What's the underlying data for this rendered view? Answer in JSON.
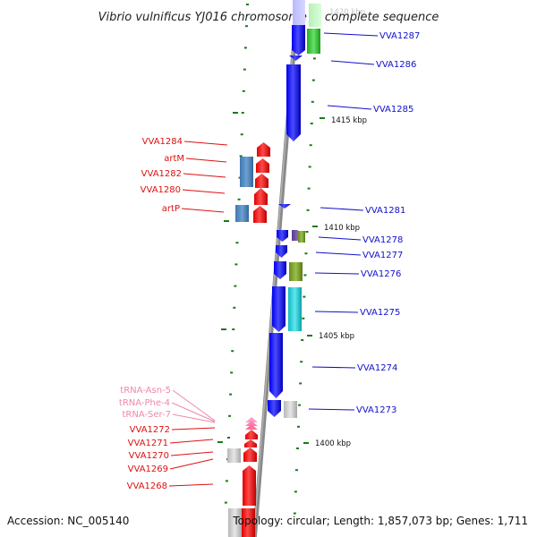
{
  "title": "Vibrio vulnificus YJ016 chromosome II, complete sequence",
  "accession": "Accession: NC_005140",
  "topology": "Topology: circular; Length: 1,857,073 bp; Genes: 1,711",
  "scale_labels": [
    "1420 kbp",
    "1415 kbp",
    "1410 kbp",
    "1405 kbp",
    "1400 kbp"
  ],
  "right_labels": [
    "VVA1287",
    "VVA1286",
    "VVA1285",
    "VVA1281",
    "VVA1278",
    "VVA1277",
    "VVA1276",
    "VVA1275",
    "VVA1274",
    "VVA1273"
  ],
  "left_labels": [
    "VVA1284",
    "artM",
    "VVA1282",
    "VVA1280",
    "artP",
    "VVA1272",
    "VVA1271",
    "VVA1270",
    "VVA1269",
    "VVA1268"
  ],
  "trna_labels": [
    "tRNA-Asn-5",
    "tRNA-Phe-4",
    "tRNA-Ser-7"
  ],
  "colors": {
    "forward_strand": "#e01010",
    "reverse_strand": "#1010e0",
    "label_right": "#1010cc",
    "label_left": "#dd1111",
    "label_trna": "#ee88aa",
    "backbone": "#888888",
    "scale_tick": "#1a7a1a"
  }
}
